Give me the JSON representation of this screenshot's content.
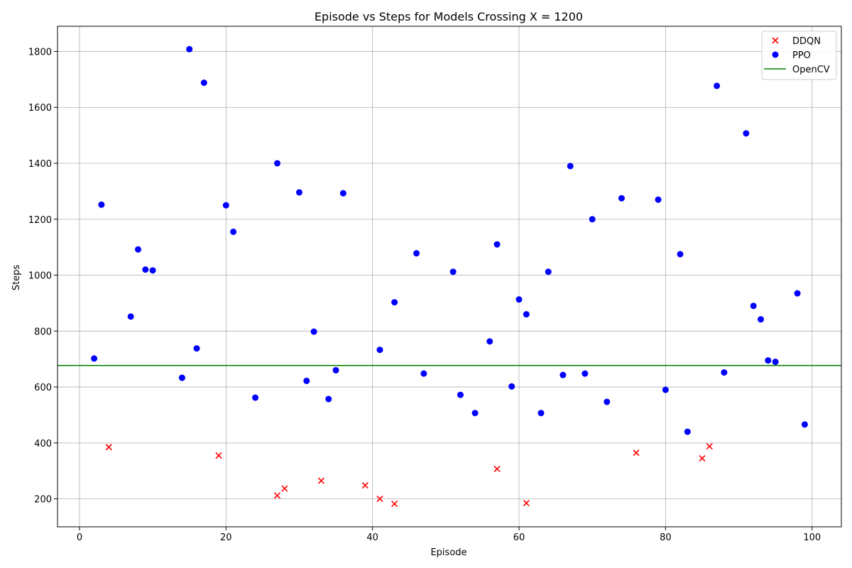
{
  "chart_data": {
    "type": "scatter",
    "title": "Episode vs Steps for Models Crossing X = 1200",
    "xlabel": "Episode",
    "ylabel": "Steps",
    "xlim": [
      -3,
      104
    ],
    "ylim": [
      100,
      1890
    ],
    "xticks": [
      0,
      20,
      40,
      60,
      80,
      100
    ],
    "yticks": [
      200,
      400,
      600,
      800,
      1000,
      1200,
      1400,
      1600,
      1800
    ],
    "grid": true,
    "legend_position": "top-right",
    "series": [
      {
        "name": "DDQN",
        "marker": "x",
        "color": "#ff0000",
        "x": [
          4,
          19,
          27,
          28,
          33,
          39,
          41,
          43,
          57,
          61,
          76,
          85,
          86
        ],
        "y": [
          385,
          355,
          212,
          237,
          265,
          248,
          200,
          182,
          307,
          185,
          365,
          345,
          388
        ]
      },
      {
        "name": "PPO",
        "marker": "o",
        "color": "#0000ff",
        "x": [
          2,
          3,
          7,
          8,
          9,
          10,
          14,
          15,
          16,
          17,
          20,
          21,
          24,
          27,
          30,
          31,
          32,
          34,
          35,
          36,
          41,
          43,
          46,
          47,
          51,
          52,
          54,
          56,
          57,
          59,
          60,
          61,
          63,
          64,
          66,
          67,
          69,
          70,
          72,
          74,
          79,
          80,
          82,
          83,
          87,
          88,
          91,
          92,
          93,
          94,
          95,
          98,
          99
        ],
        "y": [
          702,
          1252,
          852,
          1092,
          1020,
          1017,
          633,
          1808,
          738,
          1688,
          1250,
          1155,
          562,
          1400,
          1296,
          622,
          798,
          557,
          660,
          1293,
          733,
          903,
          1078,
          648,
          1012,
          572,
          507,
          763,
          1110,
          602,
          913,
          860,
          507,
          1012,
          643,
          1390,
          648,
          1200,
          547,
          1275,
          1270,
          590,
          1075,
          440,
          1677,
          652,
          1507,
          890,
          842,
          695,
          690,
          935,
          466
        ]
      },
      {
        "name": "OpenCV",
        "marker": "line",
        "color": "#008000",
        "y": 677
      }
    ]
  }
}
